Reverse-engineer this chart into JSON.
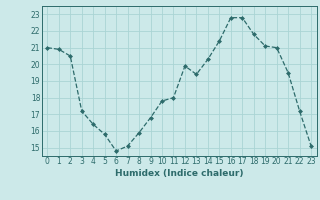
{
  "x": [
    0,
    1,
    2,
    3,
    4,
    5,
    6,
    7,
    8,
    9,
    10,
    11,
    12,
    13,
    14,
    15,
    16,
    17,
    18,
    19,
    20,
    21,
    22,
    23
  ],
  "y": [
    21.0,
    20.9,
    20.5,
    17.2,
    16.4,
    15.8,
    14.8,
    15.1,
    15.9,
    16.8,
    17.8,
    18.0,
    19.9,
    19.4,
    20.3,
    21.4,
    22.8,
    22.8,
    21.8,
    21.1,
    21.0,
    19.5,
    17.2,
    15.1
  ],
  "line_color": "#2d6b6b",
  "marker": "D",
  "marker_size": 2,
  "bg_color": "#cce9e9",
  "grid_color": "#aad4d4",
  "xlabel": "Humidex (Indice chaleur)",
  "xlim": [
    -0.5,
    23.5
  ],
  "ylim": [
    14.5,
    23.5
  ],
  "yticks": [
    15,
    16,
    17,
    18,
    19,
    20,
    21,
    22,
    23
  ],
  "xticks": [
    0,
    1,
    2,
    3,
    4,
    5,
    6,
    7,
    8,
    9,
    10,
    11,
    12,
    13,
    14,
    15,
    16,
    17,
    18,
    19,
    20,
    21,
    22,
    23
  ],
  "font_color": "#2d6b6b",
  "tick_fontsize": 5.5,
  "xlabel_fontsize": 6.5
}
